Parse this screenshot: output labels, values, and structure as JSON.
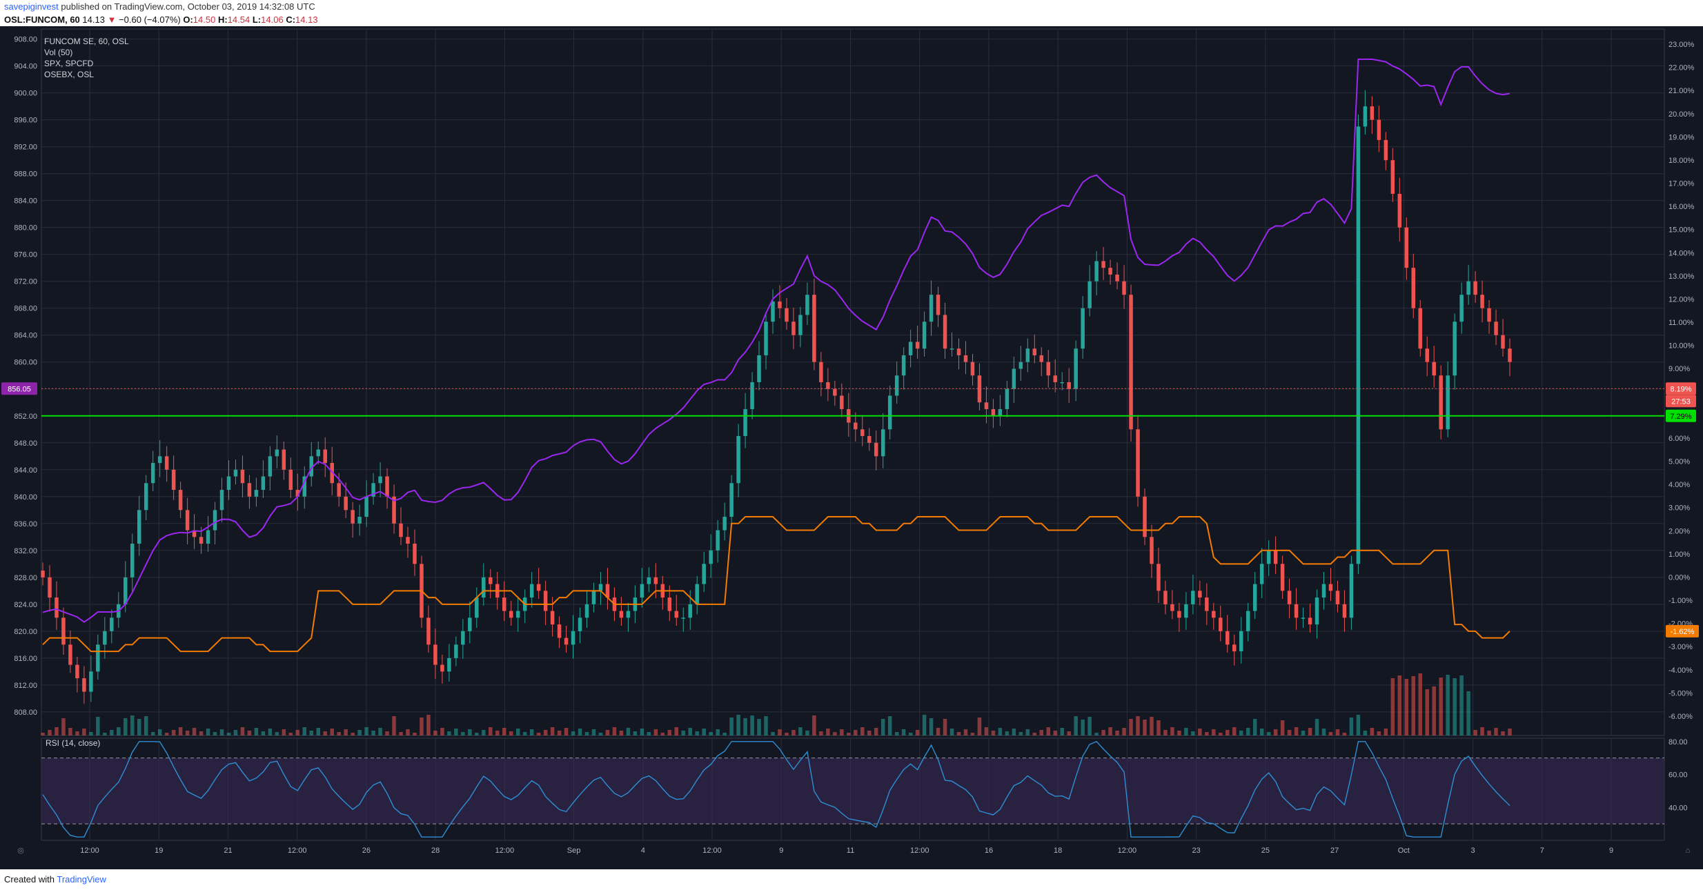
{
  "header": {
    "author": "savepiginvest",
    "published_text": "published on TradingView.com, October 03, 2019 14:32:08 UTC",
    "symbol": "OSL:FUNCOM, 60",
    "last": "14.13",
    "change_arrow": "▼",
    "change": "−0.60 (−4.07%)",
    "open_label": "O:",
    "open": "14.50",
    "high_label": "H:",
    "high": "14.54",
    "low_label": "L:",
    "low": "14.06",
    "close_label": "C:",
    "close": "14.13"
  },
  "legend": {
    "main": "FUNCOM SE, 60, OSL",
    "vol": "Vol (50)",
    "spx": "SPX, SPCFD",
    "osebx": "OSEBX, OSL"
  },
  "rsi_label": "RSI (14, close)",
  "footer": {
    "created_with": "Created with",
    "brand": "TradingView"
  },
  "colors": {
    "background": "#131722",
    "up": "#26a69a",
    "down": "#ef5350",
    "spx": "#9c27f0",
    "osebx": "#f57c00",
    "hline": "#00e000",
    "rsi": "#2e8fd6",
    "rsi_band": "#3a2a5a"
  },
  "chart_data": {
    "type": "candlestick",
    "main_axis": {
      "labels": [
        "908.00",
        "904.00",
        "900.00",
        "896.00",
        "892.00",
        "888.00",
        "884.00",
        "880.00",
        "876.00",
        "872.00",
        "868.00",
        "864.00",
        "860.00",
        "856.00",
        "852.00",
        "848.00",
        "844.00",
        "840.00",
        "836.00",
        "832.00",
        "828.00",
        "824.00",
        "820.00",
        "816.00",
        "812.00",
        "808.00"
      ],
      "range": [
        804.5,
        909.5
      ]
    },
    "percent_axis": {
      "labels": [
        "23.00%",
        "22.00%",
        "21.00%",
        "20.00%",
        "19.00%",
        "18.00%",
        "17.00%",
        "16.00%",
        "15.00%",
        "14.00%",
        "13.00%",
        "12.00%",
        "11.00%",
        "10.00%",
        "9.00%",
        "8.00%",
        "7.00%",
        "6.00%",
        "5.00%",
        "4.00%",
        "3.00%",
        "2.00%",
        "1.00%",
        "0.00%",
        "-1.00%",
        "-2.00%",
        "-3.00%",
        "-4.00%",
        "-5.00%",
        "-6.00%"
      ]
    },
    "x_ticks": [
      "12:00",
      "19",
      "21",
      "12:00",
      "26",
      "28",
      "12:00",
      "Sep",
      "4",
      "12:00",
      "9",
      "11",
      "12:00",
      "16",
      "18",
      "12:00",
      "23",
      "25",
      "27",
      "Oct",
      "3",
      "7",
      "9"
    ],
    "price_badge": "856.05",
    "horizontal_line": 852.0,
    "spx_last": "8.19%",
    "countdown": "27:53",
    "osebx_hline": "7.29%",
    "osebx_last": "-1.62%",
    "rsi_axis": {
      "labels": [
        "80.00",
        "60.00",
        "40.00"
      ],
      "range": [
        20,
        82
      ],
      "upper": 70,
      "lower": 30
    },
    "price_series": [
      828,
      825,
      822,
      818,
      815,
      813,
      811,
      814,
      818,
      820,
      822,
      824,
      828,
      833,
      838,
      842,
      845,
      846,
      844,
      841,
      838,
      835,
      834,
      833,
      835,
      838,
      841,
      843,
      844,
      842,
      840,
      841,
      843,
      846,
      847,
      844,
      841,
      840,
      843,
      846,
      847,
      845,
      842,
      840,
      838,
      836,
      837,
      840,
      842,
      843,
      840,
      836,
      834,
      833,
      830,
      822,
      818,
      815,
      814,
      816,
      818,
      820,
      822,
      825,
      828,
      827,
      825,
      823,
      822,
      823,
      825,
      827,
      826,
      823,
      821,
      819,
      818,
      820,
      822,
      824,
      826,
      827,
      825,
      823,
      822,
      823,
      825,
      827,
      828,
      827,
      825,
      823,
      822,
      822,
      824,
      827,
      830,
      832,
      835,
      837,
      842,
      849,
      853,
      857,
      861,
      866,
      869,
      868,
      866,
      864,
      867,
      870,
      860,
      857,
      856,
      855,
      853,
      851,
      850,
      849,
      848,
      846,
      850,
      855,
      858,
      861,
      863,
      862,
      866,
      870,
      867,
      862,
      862,
      861,
      860,
      858,
      854,
      853,
      852,
      853,
      856,
      859,
      860,
      862,
      861,
      860,
      858,
      857,
      857,
      856,
      862,
      868,
      872,
      875,
      874,
      873,
      872,
      870,
      850,
      840,
      834,
      830,
      826,
      824,
      823,
      822,
      824,
      826,
      825,
      823,
      822,
      820,
      818,
      817,
      820,
      823,
      827,
      830,
      832,
      830,
      826,
      824,
      822,
      822,
      821,
      825,
      827,
      826,
      824,
      822,
      830,
      895,
      898,
      896,
      893,
      890,
      885,
      880,
      874,
      868,
      862,
      860,
      858,
      850,
      858,
      866,
      870,
      872,
      870,
      868,
      866,
      864,
      862,
      860
    ]
  }
}
